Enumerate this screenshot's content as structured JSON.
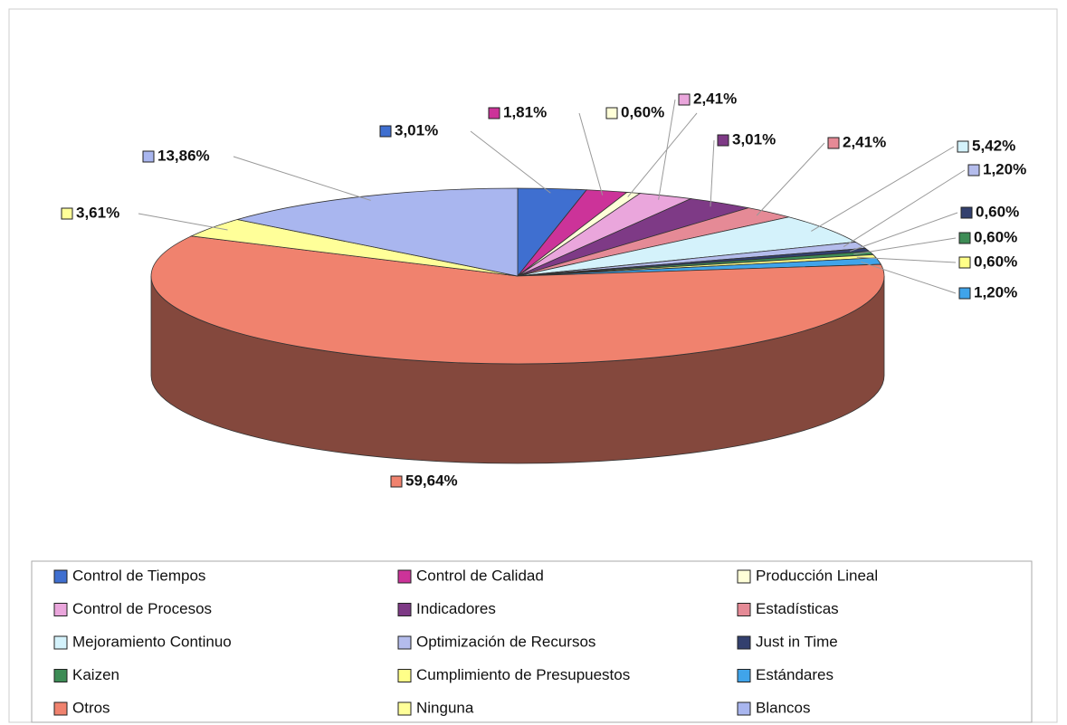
{
  "chart_data": {
    "type": "pie3d",
    "categories": [
      "Control de Tiempos",
      "Control de Calidad",
      "Producción Lineal",
      "Control de Procesos",
      "Indicadores",
      "Estadísticas",
      "Mejoramiento Continuo",
      "Optimización de Recursos",
      "Just in Time",
      "Kaizen",
      "Cumplimiento de Presupuestos",
      "Estándares",
      "Otros",
      "Ninguna",
      "Blancos"
    ],
    "values": [
      3.01,
      1.81,
      0.6,
      2.41,
      3.01,
      2.41,
      5.42,
      1.2,
      0.6,
      0.6,
      0.6,
      1.2,
      59.64,
      3.61,
      13.86
    ],
    "value_labels": [
      "3,01%",
      "1,81%",
      "0,60%",
      "2,41%",
      "3,01%",
      "2,41%",
      "5,42%",
      "1,20%",
      "0,60%",
      "0,60%",
      "0,60%",
      "1,20%",
      "59,64%",
      "3,61%",
      "13,86%"
    ],
    "colors": [
      "#3f6fd0",
      "#cc3399",
      "#ffffd8",
      "#eaa6dc",
      "#7e3a86",
      "#e58a96",
      "#d4f2fb",
      "#b4bcec",
      "#33406e",
      "#3d8c55",
      "#ffff88",
      "#40a4ea",
      "#f0826e",
      "#ffff99",
      "#a9b6ef"
    ],
    "legend": "bottom"
  }
}
